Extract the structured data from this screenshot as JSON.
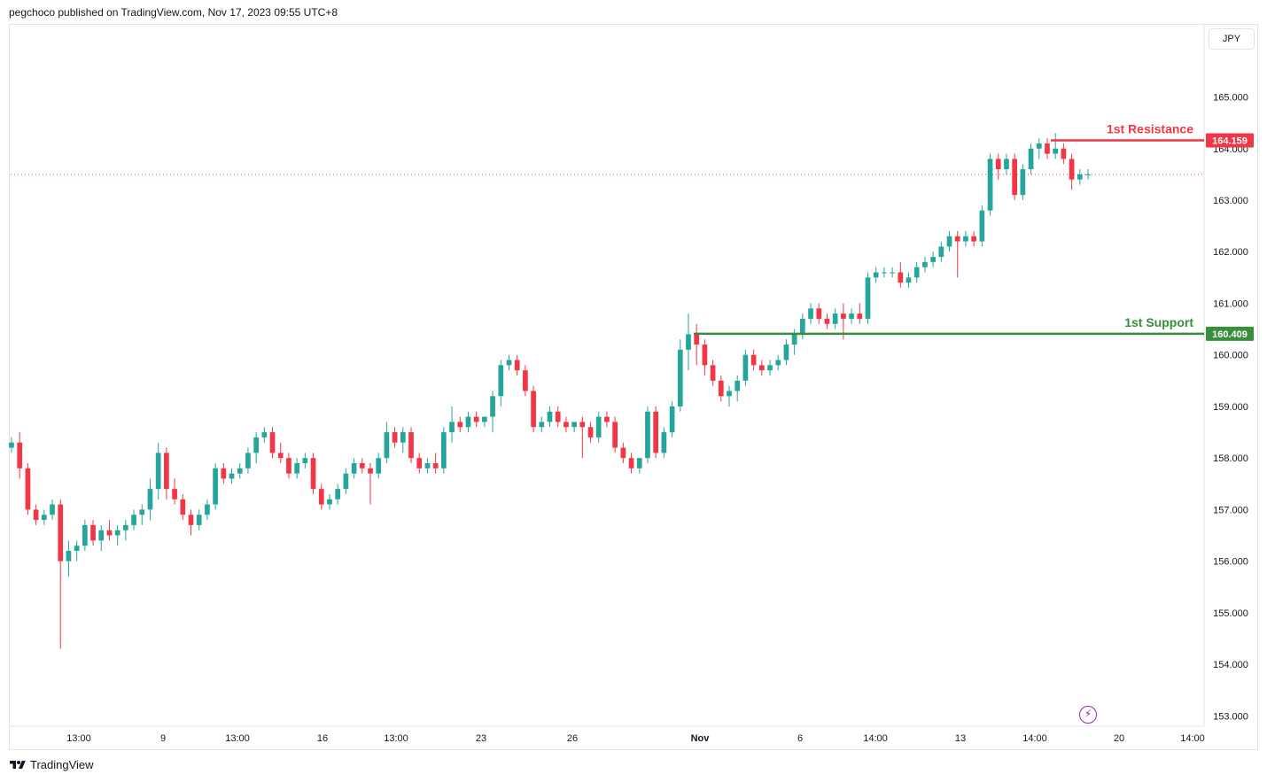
{
  "header": {
    "published": "pegchoco published on TradingView.com, Nov 17, 2023 09:55 UTC+8"
  },
  "currency": "JPY",
  "footer": {
    "brand": "TradingView",
    "logo_icon": "tradingview-logo-icon"
  },
  "colors": {
    "up": "#26a69a",
    "down": "#f23645",
    "resistance": "#f23645",
    "support": "#388e3c",
    "current_price_line": "#f23645",
    "axis_text": "#131722"
  },
  "chart_data": {
    "type": "candlestick",
    "title": "",
    "ylim": [
      152.8,
      166.4
    ],
    "y_ticks": [
      "165.000",
      "164.000",
      "163.000",
      "162.000",
      "161.000",
      "160.000",
      "159.000",
      "158.000",
      "157.000",
      "156.000",
      "155.000",
      "154.000",
      "153.000"
    ],
    "x_ticks": [
      "13:00",
      "9",
      "13:00",
      "16",
      "13:00",
      "23",
      "26",
      "Nov",
      "6",
      "14:00",
      "13",
      "14:00",
      "20",
      "14:00"
    ],
    "current_price": 163.5,
    "levels": [
      {
        "name": "1st Resistance",
        "price_label": "164.159",
        "value": 164.159
      },
      {
        "name": "1st Support",
        "price_label": "160.409",
        "value": 160.409
      }
    ],
    "candles": [
      [
        158.2,
        158.4,
        158.1,
        158.3
      ],
      [
        158.3,
        158.5,
        157.6,
        157.8
      ],
      [
        157.8,
        157.9,
        156.9,
        157.0
      ],
      [
        157.0,
        157.1,
        156.7,
        156.8
      ],
      [
        156.8,
        157.0,
        156.7,
        156.9
      ],
      [
        156.9,
        157.2,
        156.8,
        157.1
      ],
      [
        157.1,
        157.2,
        154.3,
        156.0
      ],
      [
        156.0,
        156.4,
        155.7,
        156.2
      ],
      [
        156.2,
        156.4,
        156.0,
        156.3
      ],
      [
        156.3,
        156.8,
        156.2,
        156.7
      ],
      [
        156.7,
        156.8,
        156.3,
        156.4
      ],
      [
        156.4,
        156.7,
        156.2,
        156.6
      ],
      [
        156.6,
        156.8,
        156.4,
        156.5
      ],
      [
        156.5,
        156.7,
        156.3,
        156.6
      ],
      [
        156.6,
        156.8,
        156.4,
        156.7
      ],
      [
        156.7,
        157.0,
        156.6,
        156.9
      ],
      [
        156.9,
        157.1,
        156.7,
        157.0
      ],
      [
        157.0,
        157.6,
        156.8,
        157.4
      ],
      [
        157.4,
        158.3,
        157.2,
        158.1
      ],
      [
        158.1,
        158.2,
        157.2,
        157.4
      ],
      [
        157.4,
        157.6,
        157.1,
        157.2
      ],
      [
        157.2,
        157.3,
        156.8,
        156.9
      ],
      [
        156.9,
        157.0,
        156.5,
        156.7
      ],
      [
        156.7,
        157.0,
        156.6,
        156.9
      ],
      [
        156.9,
        157.2,
        156.8,
        157.1
      ],
      [
        157.1,
        157.9,
        157.0,
        157.8
      ],
      [
        157.8,
        157.9,
        157.5,
        157.6
      ],
      [
        157.6,
        157.8,
        157.5,
        157.7
      ],
      [
        157.7,
        157.9,
        157.6,
        157.8
      ],
      [
        157.8,
        158.2,
        157.7,
        158.1
      ],
      [
        158.1,
        158.5,
        157.9,
        158.4
      ],
      [
        158.4,
        158.6,
        158.3,
        158.5
      ],
      [
        158.5,
        158.6,
        158.0,
        158.1
      ],
      [
        158.1,
        158.3,
        157.9,
        158.0
      ],
      [
        158.0,
        158.1,
        157.6,
        157.7
      ],
      [
        157.7,
        158.0,
        157.6,
        157.9
      ],
      [
        157.9,
        158.1,
        157.8,
        158.0
      ],
      [
        158.0,
        158.1,
        157.3,
        157.4
      ],
      [
        157.4,
        157.5,
        157.0,
        157.1
      ],
      [
        157.1,
        157.3,
        157.0,
        157.2
      ],
      [
        157.2,
        157.5,
        157.1,
        157.4
      ],
      [
        157.4,
        157.8,
        157.3,
        157.7
      ],
      [
        157.7,
        158.0,
        157.6,
        157.9
      ],
      [
        157.9,
        158.0,
        157.7,
        157.8
      ],
      [
        157.8,
        157.9,
        157.1,
        157.7
      ],
      [
        157.7,
        158.1,
        157.6,
        158.0
      ],
      [
        158.0,
        158.7,
        157.9,
        158.5
      ],
      [
        158.5,
        158.6,
        158.2,
        158.3
      ],
      [
        158.3,
        158.6,
        158.1,
        158.5
      ],
      [
        158.5,
        158.6,
        157.9,
        158.0
      ],
      [
        158.0,
        158.1,
        157.7,
        157.8
      ],
      [
        157.8,
        158.0,
        157.7,
        157.9
      ],
      [
        157.9,
        158.1,
        157.7,
        157.8
      ],
      [
        157.8,
        158.6,
        157.7,
        158.5
      ],
      [
        158.5,
        159.0,
        158.3,
        158.7
      ],
      [
        158.7,
        158.8,
        158.5,
        158.6
      ],
      [
        158.6,
        158.9,
        158.5,
        158.8
      ],
      [
        158.8,
        158.9,
        158.6,
        158.7
      ],
      [
        158.7,
        158.8,
        158.6,
        158.8
      ],
      [
        158.8,
        159.3,
        158.5,
        159.2
      ],
      [
        159.2,
        159.9,
        159.0,
        159.8
      ],
      [
        159.8,
        160.0,
        159.7,
        159.9
      ],
      [
        159.9,
        160.0,
        159.6,
        159.7
      ],
      [
        159.7,
        159.8,
        159.2,
        159.3
      ],
      [
        159.3,
        159.4,
        158.5,
        158.6
      ],
      [
        158.6,
        158.8,
        158.5,
        158.7
      ],
      [
        158.7,
        159.0,
        158.6,
        158.9
      ],
      [
        158.9,
        159.0,
        158.6,
        158.7
      ],
      [
        158.7,
        158.8,
        158.5,
        158.6
      ],
      [
        158.6,
        158.7,
        158.5,
        158.7
      ],
      [
        158.7,
        158.8,
        158.0,
        158.6
      ],
      [
        158.6,
        158.7,
        158.3,
        158.4
      ],
      [
        158.4,
        158.9,
        158.3,
        158.8
      ],
      [
        158.8,
        158.9,
        158.6,
        158.7
      ],
      [
        158.7,
        158.8,
        158.1,
        158.2
      ],
      [
        158.2,
        158.3,
        157.9,
        158.0
      ],
      [
        158.0,
        158.1,
        157.7,
        157.8
      ],
      [
        157.8,
        157.9,
        157.7,
        158.0
      ],
      [
        158.0,
        159.0,
        157.9,
        158.9
      ],
      [
        158.9,
        159.0,
        158.0,
        158.1
      ],
      [
        158.1,
        158.6,
        158.0,
        158.5
      ],
      [
        158.5,
        159.1,
        158.4,
        159.0
      ],
      [
        159.0,
        160.3,
        158.9,
        160.1
      ],
      [
        160.1,
        160.8,
        159.7,
        160.4
      ],
      [
        160.4,
        160.6,
        159.8,
        160.2
      ],
      [
        160.2,
        160.3,
        159.6,
        159.8
      ],
      [
        159.8,
        159.9,
        159.4,
        159.5
      ],
      [
        159.5,
        159.6,
        159.1,
        159.2
      ],
      [
        159.2,
        159.4,
        159.0,
        159.3
      ],
      [
        159.3,
        159.6,
        159.1,
        159.5
      ],
      [
        159.5,
        160.1,
        159.4,
        160.0
      ],
      [
        160.0,
        160.1,
        159.7,
        159.8
      ],
      [
        159.8,
        159.9,
        159.6,
        159.7
      ],
      [
        159.7,
        159.9,
        159.6,
        159.8
      ],
      [
        159.8,
        160.0,
        159.7,
        159.9
      ],
      [
        159.9,
        160.3,
        159.8,
        160.2
      ],
      [
        160.2,
        160.5,
        160.0,
        160.4
      ],
      [
        160.4,
        160.8,
        160.3,
        160.7
      ],
      [
        160.7,
        161.0,
        160.6,
        160.9
      ],
      [
        160.9,
        161.0,
        160.6,
        160.7
      ],
      [
        160.7,
        160.8,
        160.5,
        160.6
      ],
      [
        160.6,
        160.9,
        160.5,
        160.8
      ],
      [
        160.8,
        161.0,
        160.3,
        160.7
      ],
      [
        160.7,
        160.9,
        160.6,
        160.8
      ],
      [
        160.8,
        161.0,
        160.6,
        160.7
      ],
      [
        160.7,
        161.6,
        160.6,
        161.5
      ],
      [
        161.5,
        161.7,
        161.4,
        161.6
      ],
      [
        161.6,
        161.7,
        161.5,
        161.6
      ],
      [
        161.6,
        161.7,
        161.5,
        161.6
      ],
      [
        161.6,
        161.8,
        161.3,
        161.4
      ],
      [
        161.4,
        161.6,
        161.3,
        161.5
      ],
      [
        161.5,
        161.8,
        161.4,
        161.7
      ],
      [
        161.7,
        161.9,
        161.6,
        161.8
      ],
      [
        161.8,
        162.0,
        161.7,
        161.9
      ],
      [
        161.9,
        162.2,
        161.8,
        162.1
      ],
      [
        162.1,
        162.4,
        162.0,
        162.3
      ],
      [
        162.3,
        162.4,
        161.5,
        162.2
      ],
      [
        162.2,
        162.4,
        162.1,
        162.3
      ],
      [
        162.3,
        162.4,
        162.1,
        162.2
      ],
      [
        162.2,
        162.9,
        162.1,
        162.8
      ],
      [
        162.8,
        163.9,
        162.7,
        163.8
      ],
      [
        163.8,
        163.9,
        163.4,
        163.6
      ],
      [
        163.6,
        163.9,
        163.5,
        163.8
      ],
      [
        163.8,
        163.9,
        163.0,
        163.1
      ],
      [
        163.1,
        163.7,
        163.0,
        163.6
      ],
      [
        163.6,
        164.1,
        163.5,
        164.0
      ],
      [
        164.0,
        164.2,
        163.8,
        164.1
      ],
      [
        164.1,
        164.2,
        163.8,
        163.9
      ],
      [
        163.9,
        164.3,
        163.8,
        164.0
      ],
      [
        164.0,
        164.1,
        163.7,
        163.8
      ],
      [
        163.8,
        163.9,
        163.2,
        163.4
      ],
      [
        163.4,
        163.6,
        163.3,
        163.5
      ],
      [
        163.5,
        163.6,
        163.4,
        163.5
      ]
    ]
  }
}
